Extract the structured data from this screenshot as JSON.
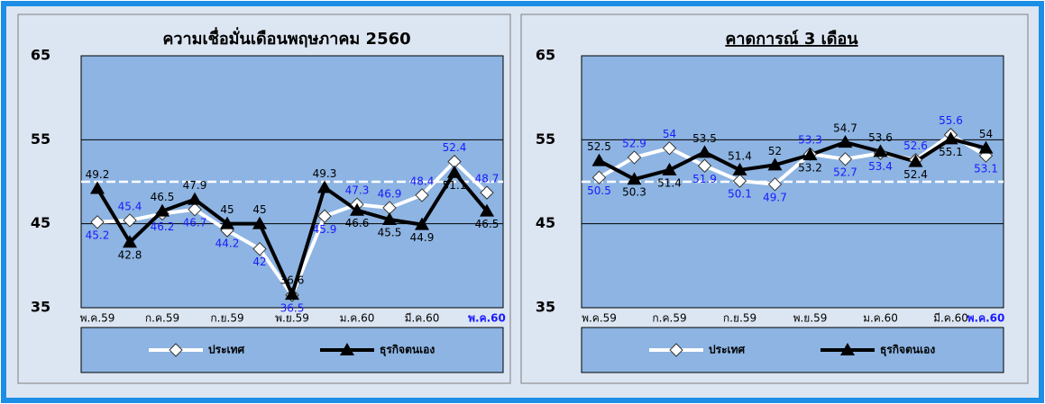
{
  "chart_data": [
    {
      "type": "line",
      "title": "ความเชื่อมั่นเดือนพฤษภาคม 2560",
      "categories": [
        "พ.ค.59",
        null,
        "ก.ค.59",
        null,
        "ก.ย.59",
        null,
        "พ.ย.59",
        null,
        "ม.ค.60",
        null,
        "มี.ค.60",
        null,
        "พ.ค.60"
      ],
      "series": [
        {
          "name": "ประเทศ",
          "color": "#ffffff",
          "label_color": "#1a1aff",
          "marker": "diamond",
          "values": [
            45.2,
            45.4,
            46.2,
            46.7,
            44.2,
            42.0,
            36.5,
            45.9,
            47.3,
            46.9,
            48.4,
            52.4,
            48.7
          ]
        },
        {
          "name": "ธุรกิจตนเอง",
          "color": "#000000",
          "label_color": "#000000",
          "marker": "triangle",
          "values": [
            49.2,
            42.8,
            46.5,
            47.9,
            45.0,
            45.0,
            36.6,
            49.3,
            46.6,
            45.5,
            44.9,
            51.1,
            46.5
          ]
        }
      ],
      "ylim": [
        35,
        65
      ],
      "yticks": [
        35,
        45,
        55,
        65
      ],
      "grid": true,
      "reference_line": 50
    },
    {
      "type": "line",
      "title": "คาดการณ์ 3 เดือน",
      "categories": [
        "พ.ค.59",
        null,
        "ก.ค.59",
        null,
        "ก.ย.59",
        null,
        "พ.ย.59",
        null,
        "ม.ค.60",
        null,
        "มี.ค.60",
        "พ.ค.60"
      ],
      "series": [
        {
          "name": "ประเทศ",
          "color": "#ffffff",
          "label_color": "#1a1aff",
          "marker": "diamond",
          "values": [
            50.5,
            52.9,
            54.0,
            51.9,
            50.1,
            49.7,
            53.3,
            52.7,
            53.4,
            52.6,
            55.6,
            53.1
          ]
        },
        {
          "name": "ธุรกิจตนเอง",
          "color": "#000000",
          "label_color": "#000000",
          "marker": "triangle",
          "values": [
            52.5,
            50.3,
            51.4,
            53.5,
            51.4,
            52.0,
            53.2,
            54.7,
            53.6,
            52.4,
            55.1,
            54.0
          ]
        }
      ],
      "ylim": [
        35,
        65
      ],
      "yticks": [
        35,
        45,
        55,
        65
      ],
      "grid": true,
      "reference_line": 50
    }
  ]
}
